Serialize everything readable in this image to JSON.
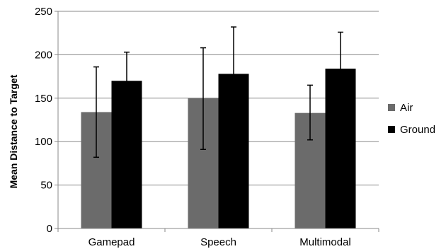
{
  "chart_data": {
    "type": "bar",
    "title": "",
    "xlabel": "",
    "ylabel": "Mean Distance to Target",
    "ylim": [
      0,
      250
    ],
    "yticks": [
      0,
      50,
      100,
      150,
      200,
      250
    ],
    "grid": true,
    "legend_position": "right",
    "categories": [
      "Gamepad",
      "Speech",
      "Multimodal"
    ],
    "series": [
      {
        "name": "Air",
        "color": "#6b6b6b",
        "values": [
          134,
          150,
          133
        ],
        "err_low": [
          82,
          91,
          102
        ],
        "err_high": [
          186,
          208,
          165
        ]
      },
      {
        "name": "Ground",
        "color": "#000000",
        "values": [
          170,
          178,
          184
        ],
        "err_low": [
          137,
          123,
          142
        ],
        "err_high": [
          203,
          232,
          226
        ]
      }
    ]
  }
}
